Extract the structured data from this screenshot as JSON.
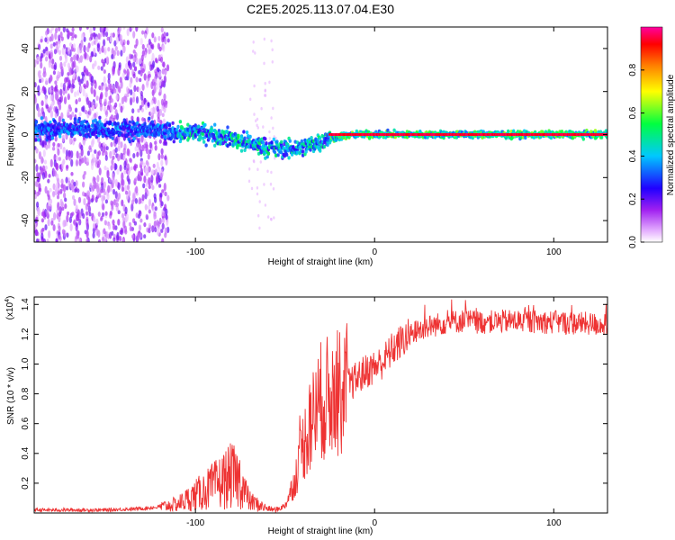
{
  "figure_title": "C2E5.2025.113.07.04.E30",
  "chart_data": [
    {
      "type": "heatmap",
      "xlabel": "Height of straight line (km)",
      "ylabel": "Frequency (Hz)",
      "xlim": [
        -190,
        130
      ],
      "ylim": [
        -50,
        50
      ],
      "xticks": [
        -100,
        0,
        100
      ],
      "yticks": [
        -40,
        -20,
        0,
        20,
        40
      ],
      "colorbar": {
        "label": "Normalized spectral amplitude",
        "range": [
          0,
          1
        ],
        "ticks": [
          "0.0",
          "0.2",
          "0.4",
          "0.6",
          "0.8"
        ],
        "colormap": [
          "#ffffff",
          "#e6b3ff",
          "#a020f0",
          "#2000ff",
          "#00c8ff",
          "#00ff40",
          "#ffff00",
          "#ff8000",
          "#ff0000",
          "#ff00a0"
        ]
      },
      "ridge": {
        "x": [
          -190,
          -160,
          -130,
          -110,
          -100,
          -90,
          -80,
          -70,
          -60,
          -50,
          -40,
          -30,
          -20,
          -10,
          0,
          20,
          40,
          60,
          80,
          100,
          130
        ],
        "frequency": [
          2,
          3,
          2,
          1,
          1,
          0,
          -2,
          -4,
          -6,
          -7,
          -6,
          -3,
          -1,
          0,
          0,
          0,
          0,
          0,
          0,
          0,
          0
        ]
      }
    },
    {
      "type": "line",
      "xlabel": "Height of straight line (km)",
      "ylabel": "SNR (10 * v/v)",
      "y_scale_label": "(x10",
      "y_scale_exp": "4",
      "y_scale_close": ")",
      "xlim": [
        -190,
        130
      ],
      "ylim": [
        0,
        1.45
      ],
      "xticks": [
        -100,
        0,
        100
      ],
      "yticks": [
        "0.2",
        "0.4",
        "0.6",
        "0.8",
        "1.0",
        "1.2",
        "1.4"
      ],
      "line_color": "#ee3333",
      "series": [
        {
          "x": [
            -190,
            -170,
            -150,
            -130,
            -120,
            -110,
            -100,
            -90,
            -80,
            -75,
            -70,
            -60,
            -55,
            -50,
            -45,
            -40,
            -35,
            -30,
            -25,
            -20,
            -15,
            -10,
            -5,
            0,
            5,
            10,
            20,
            25,
            30,
            40,
            50,
            60,
            80,
            100,
            120,
            130
          ],
          "values": [
            0.02,
            0.02,
            0.02,
            0.03,
            0.04,
            0.06,
            0.12,
            0.18,
            0.25,
            0.22,
            0.08,
            0.03,
            0.02,
            0.05,
            0.2,
            0.45,
            0.62,
            0.75,
            0.78,
            0.8,
            0.85,
            0.9,
            0.95,
            0.98,
            1.02,
            1.1,
            1.2,
            1.23,
            1.25,
            1.28,
            1.29,
            1.28,
            1.29,
            1.28,
            1.27,
            1.26
          ]
        }
      ]
    }
  ]
}
